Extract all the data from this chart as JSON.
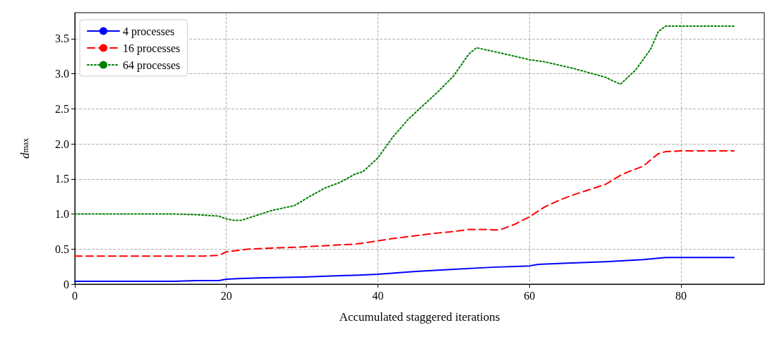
{
  "chart_data": {
    "type": "line",
    "xlabel": "Accumulated staggered iterations",
    "ylabel": "d$_{max}$",
    "xlim": [
      0,
      91
    ],
    "ylim": [
      0,
      3.87
    ],
    "xticks": [
      0,
      20,
      40,
      60,
      80
    ],
    "yticks": [
      0,
      0.5,
      {
        "value": 1,
        "label": "1.0"
      },
      1.5,
      {
        "value": 2,
        "label": "2.0"
      },
      2.5,
      {
        "value": 3,
        "label": "3.0"
      },
      3.5
    ],
    "grid": true,
    "legend": "top left",
    "marker": "none",
    "series": [
      {
        "name": "4 processes",
        "color": "#0000ff",
        "line_style": "solid",
        "x": [
          0,
          13,
          16,
          19,
          20,
          22,
          25,
          30,
          35,
          38,
          40,
          45,
          50,
          55,
          60,
          61,
          65,
          70,
          75,
          77,
          78,
          87
        ],
        "values": [
          0.04,
          0.04,
          0.05,
          0.05,
          0.07,
          0.08,
          0.09,
          0.1,
          0.12,
          0.13,
          0.14,
          0.18,
          0.21,
          0.24,
          0.26,
          0.28,
          0.3,
          0.32,
          0.35,
          0.37,
          0.38,
          0.38
        ]
      },
      {
        "name": "16 processes",
        "color": "#ff0000",
        "line_style": "dashed",
        "x": [
          0,
          13,
          17,
          19,
          20,
          23,
          25,
          30,
          35,
          37,
          39,
          42,
          45,
          48,
          50,
          52,
          54,
          56,
          58,
          60,
          62,
          64,
          66,
          68,
          70,
          72,
          73,
          75,
          77,
          78,
          80,
          87
        ],
        "values": [
          0.4,
          0.4,
          0.4,
          0.41,
          0.46,
          0.5,
          0.51,
          0.53,
          0.56,
          0.57,
          0.6,
          0.65,
          0.69,
          0.73,
          0.75,
          0.78,
          0.78,
          0.77,
          0.85,
          0.96,
          1.1,
          1.2,
          1.28,
          1.35,
          1.42,
          1.55,
          1.6,
          1.68,
          1.86,
          1.89,
          1.9,
          1.9
        ]
      },
      {
        "name": "64 processes",
        "color": "#008000",
        "line_style": "dotted",
        "x": [
          0,
          13,
          16,
          19,
          20,
          21,
          22,
          24,
          26,
          29,
          31,
          33,
          35,
          37,
          38,
          40,
          42,
          44,
          46,
          48,
          50,
          52,
          53,
          56,
          60,
          62,
          66,
          70,
          72,
          74,
          76,
          77,
          78,
          87
        ],
        "values": [
          1.0,
          1.0,
          0.99,
          0.97,
          0.93,
          0.91,
          0.91,
          0.98,
          1.05,
          1.12,
          1.25,
          1.37,
          1.45,
          1.57,
          1.6,
          1.8,
          2.1,
          2.35,
          2.55,
          2.75,
          2.97,
          3.28,
          3.37,
          3.3,
          3.2,
          3.17,
          3.07,
          2.95,
          2.85,
          3.05,
          3.35,
          3.6,
          3.68,
          3.68
        ]
      }
    ]
  }
}
